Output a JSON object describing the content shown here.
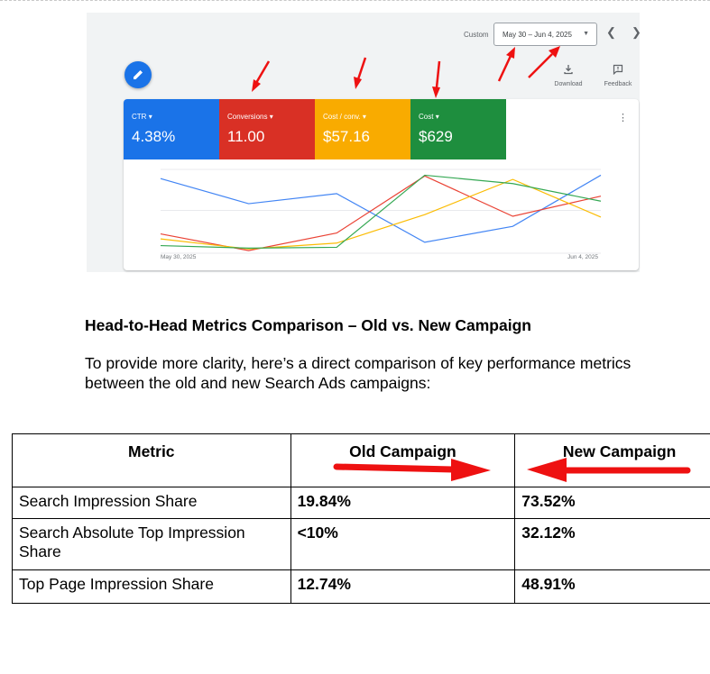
{
  "ads_screenshot": {
    "date_label": "Custom",
    "date_range": "May 30 – Jun 4, 2025",
    "tools": [
      {
        "label": "Download",
        "icon": "download-icon"
      },
      {
        "label": "Feedback",
        "icon": "feedback-icon"
      }
    ],
    "metrics": [
      {
        "name": "CTR",
        "value": "4.38%",
        "color": "#1a73e8"
      },
      {
        "name": "Conversions",
        "value": "11.00",
        "color": "#d93025"
      },
      {
        "name": "Cost / conv.",
        "value": "$57.16",
        "color": "#f9ab00"
      },
      {
        "name": "Cost",
        "value": "$629",
        "color": "#1e8e3e"
      }
    ],
    "chart_data": {
      "type": "line",
      "x": [
        "May 30, 2025",
        "May 31, 2025",
        "Jun 1, 2025",
        "Jun 2, 2025",
        "Jun 3, 2025",
        "Jun 4, 2025"
      ],
      "x_tick_labels": [
        "May 30, 2025",
        "Jun 4, 2025"
      ],
      "y_scale": "normalized per series (no y-axis shown)",
      "ylim": [
        0,
        100
      ],
      "grid": true,
      "series": [
        {
          "metric": "CTR",
          "color": "#4285f4",
          "values": [
            88,
            58,
            70,
            12,
            31,
            92
          ]
        },
        {
          "metric": "Conversions",
          "color": "#ea4335",
          "values": [
            22,
            2,
            23,
            91,
            43,
            67
          ]
        },
        {
          "metric": "Cost / conv.",
          "color": "#fbbc04",
          "values": [
            16,
            4,
            11,
            45,
            87,
            42
          ]
        },
        {
          "metric": "Cost",
          "color": "#34a853",
          "values": [
            8,
            5,
            6,
            92,
            82,
            61
          ]
        }
      ]
    }
  },
  "section": {
    "heading": "Head-to-Head Metrics Comparison – Old vs. New Campaign",
    "paragraph": "To provide more clarity, here’s a direct comparison of key performance metrics between the old and new Search Ads campaigns:"
  },
  "table": {
    "headers": [
      "Metric",
      "Old Campaign",
      "New Campaign"
    ],
    "rows": [
      [
        "Search Impression Share",
        "19.84%",
        "73.52%"
      ],
      [
        "Search Absolute Top Impression Share",
        "<10%",
        "32.12%"
      ],
      [
        "Top Page Impression Share",
        "12.74%",
        "48.91%"
      ]
    ]
  },
  "annotation_color": "#ee1111"
}
